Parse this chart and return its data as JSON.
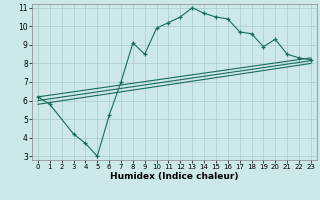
{
  "title": "",
  "xlabel": "Humidex (Indice chaleur)",
  "ylabel": "",
  "bg_color": "#cce8e8",
  "grid_color": "#aacccc",
  "line_color": "#1a6b5a",
  "xlim": [
    -0.5,
    23.5
  ],
  "ylim": [
    2.8,
    11.2
  ],
  "xticks": [
    0,
    1,
    2,
    3,
    4,
    5,
    6,
    7,
    8,
    9,
    10,
    11,
    12,
    13,
    14,
    15,
    16,
    17,
    18,
    19,
    20,
    21,
    22,
    23
  ],
  "yticks": [
    3,
    4,
    5,
    6,
    7,
    8,
    9,
    10,
    11
  ],
  "series1_x": [
    0,
    1,
    3,
    4,
    5,
    6,
    7,
    8,
    9,
    10,
    11,
    12,
    13,
    14,
    15,
    16,
    17,
    18,
    19,
    20,
    21,
    22,
    23
  ],
  "series1_y": [
    6.2,
    5.8,
    4.2,
    3.7,
    3.0,
    5.2,
    7.0,
    9.1,
    8.5,
    9.9,
    10.2,
    10.5,
    11.0,
    10.7,
    10.5,
    10.4,
    9.7,
    9.6,
    8.9,
    9.3,
    8.5,
    8.3,
    8.2
  ],
  "series2_x": [
    0,
    23
  ],
  "series2_y": [
    6.2,
    8.3
  ],
  "series3_x": [
    0,
    23
  ],
  "series3_y": [
    6.0,
    8.15
  ],
  "series4_x": [
    0,
    23
  ],
  "series4_y": [
    5.8,
    8.0
  ]
}
